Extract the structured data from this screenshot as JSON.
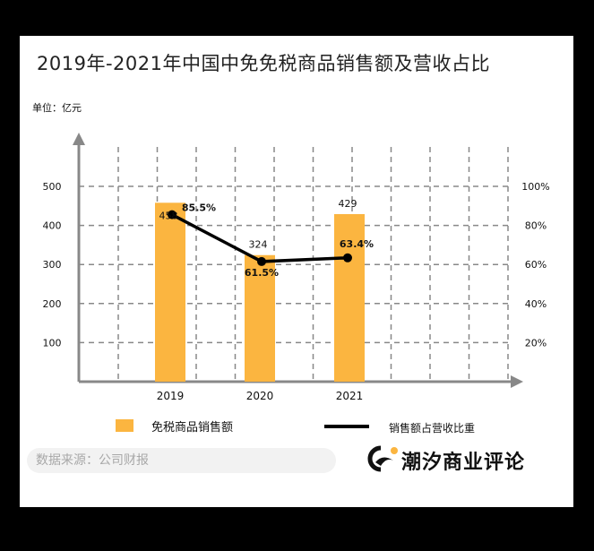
{
  "title": "2019年-2021年中国中免免税商品销售额及营收占比",
  "unit_label": "单位：亿元",
  "source_text": "数据来源：公司财报",
  "brand": "潮汐商业评论",
  "legend": {
    "bar_label": "免税商品销售额",
    "line_label": "销售额占营收比重"
  },
  "colors": {
    "bar": "#FBB540",
    "line": "#000000",
    "grid": "#888888",
    "axis": "#888888"
  },
  "chart_data": {
    "type": "bar",
    "categories": [
      "2019",
      "2020",
      "2021"
    ],
    "series": [
      {
        "name": "免税商品销售额",
        "type": "bar",
        "axis": "left",
        "values": [
          458,
          324,
          429
        ],
        "labels": [
          "458",
          "324",
          "429"
        ]
      },
      {
        "name": "销售额占营收比重",
        "type": "line",
        "axis": "right",
        "values": [
          85.5,
          61.5,
          63.4
        ],
        "labels": [
          "85.5%",
          "61.5%",
          "63.4%"
        ]
      }
    ],
    "y_left": {
      "ticks": [
        100,
        200,
        300,
        400,
        500
      ],
      "range": [
        0,
        500
      ]
    },
    "y_right": {
      "ticks": [
        "20%",
        "40%",
        "60%",
        "80%",
        "100%"
      ],
      "range": [
        0,
        100
      ]
    },
    "grid": true
  }
}
